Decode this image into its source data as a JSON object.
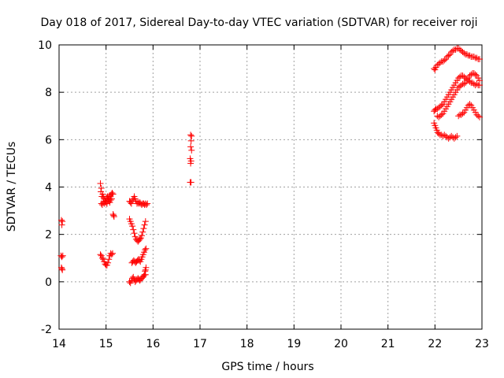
{
  "chart_data": {
    "type": "scatter",
    "title": "Day 018 of 2017, Sidereal Day-to-day VTEC variation (SDTVAR) for receiver roji",
    "xlabel": "GPS time / hours",
    "ylabel": "SDTVAR / TECUs",
    "xlim": [
      14,
      23
    ],
    "ylim": [
      -2,
      10
    ],
    "xticks": [
      "14",
      "15",
      "16",
      "17",
      "18",
      "19",
      "20",
      "21",
      "22",
      "23"
    ],
    "yticks": [
      "-2",
      "0",
      "2",
      "4",
      "6",
      "8",
      "10"
    ],
    "grid": true,
    "marker": "+",
    "color": "#ff0000",
    "series": [
      {
        "name": "SDTVAR",
        "points": [
          [
            14.05,
            2.6
          ],
          [
            14.06,
            2.4
          ],
          [
            14.07,
            2.55
          ],
          [
            14.04,
            1.1
          ],
          [
            14.06,
            1.05
          ],
          [
            14.08,
            1.1
          ],
          [
            14.05,
            0.6
          ],
          [
            14.07,
            0.5
          ],
          [
            14.06,
            0.55
          ],
          [
            14.88,
            4.15
          ],
          [
            14.9,
            3.95
          ],
          [
            14.89,
            3.8
          ],
          [
            14.91,
            3.6
          ],
          [
            14.93,
            3.7
          ],
          [
            14.95,
            3.55
          ],
          [
            14.97,
            3.5
          ],
          [
            14.99,
            3.4
          ],
          [
            15.01,
            3.55
          ],
          [
            15.03,
            3.6
          ],
          [
            15.05,
            3.5
          ],
          [
            15.07,
            3.6
          ],
          [
            15.09,
            3.65
          ],
          [
            15.11,
            3.7
          ],
          [
            15.13,
            3.75
          ],
          [
            15.15,
            3.7
          ],
          [
            14.9,
            3.3
          ],
          [
            14.92,
            3.25
          ],
          [
            14.94,
            3.35
          ],
          [
            14.96,
            3.3
          ],
          [
            14.98,
            3.4
          ],
          [
            15.0,
            3.35
          ],
          [
            15.02,
            3.3
          ],
          [
            15.04,
            3.4
          ],
          [
            15.06,
            3.45
          ],
          [
            15.08,
            3.35
          ],
          [
            15.1,
            3.45
          ],
          [
            15.12,
            3.5
          ],
          [
            15.15,
            2.85
          ],
          [
            15.17,
            2.75
          ],
          [
            15.16,
            2.8
          ],
          [
            14.88,
            1.15
          ],
          [
            14.9,
            1.1
          ],
          [
            14.92,
            1.0
          ],
          [
            14.94,
            0.95
          ],
          [
            14.96,
            0.85
          ],
          [
            14.98,
            0.75
          ],
          [
            15.0,
            0.7
          ],
          [
            15.02,
            0.7
          ],
          [
            15.04,
            0.8
          ],
          [
            15.06,
            0.95
          ],
          [
            15.08,
            1.1
          ],
          [
            15.1,
            1.2
          ],
          [
            15.12,
            1.15
          ],
          [
            15.14,
            1.2
          ],
          [
            15.5,
            3.4
          ],
          [
            15.52,
            3.35
          ],
          [
            15.54,
            3.3
          ],
          [
            15.56,
            3.45
          ],
          [
            15.58,
            3.5
          ],
          [
            15.6,
            3.6
          ],
          [
            15.62,
            3.5
          ],
          [
            15.64,
            3.4
          ],
          [
            15.66,
            3.3
          ],
          [
            15.68,
            3.35
          ],
          [
            15.7,
            3.3
          ],
          [
            15.72,
            3.35
          ],
          [
            15.74,
            3.3
          ],
          [
            15.76,
            3.25
          ],
          [
            15.78,
            3.3
          ],
          [
            15.8,
            3.3
          ],
          [
            15.82,
            3.25
          ],
          [
            15.84,
            3.3
          ],
          [
            15.86,
            3.25
          ],
          [
            15.88,
            3.3
          ],
          [
            15.5,
            2.65
          ],
          [
            15.52,
            2.55
          ],
          [
            15.54,
            2.45
          ],
          [
            15.56,
            2.35
          ],
          [
            15.58,
            2.2
          ],
          [
            15.6,
            2.05
          ],
          [
            15.62,
            1.9
          ],
          [
            15.64,
            1.8
          ],
          [
            15.66,
            1.75
          ],
          [
            15.68,
            1.7
          ],
          [
            15.7,
            1.75
          ],
          [
            15.72,
            1.8
          ],
          [
            15.74,
            1.85
          ],
          [
            15.76,
            1.95
          ],
          [
            15.78,
            2.1
          ],
          [
            15.8,
            2.25
          ],
          [
            15.82,
            2.4
          ],
          [
            15.84,
            2.55
          ],
          [
            15.55,
            0.8
          ],
          [
            15.57,
            0.85
          ],
          [
            15.59,
            0.9
          ],
          [
            15.61,
            0.85
          ],
          [
            15.63,
            0.8
          ],
          [
            15.65,
            0.85
          ],
          [
            15.67,
            0.9
          ],
          [
            15.69,
            0.95
          ],
          [
            15.71,
            0.9
          ],
          [
            15.73,
            0.85
          ],
          [
            15.75,
            0.95
          ],
          [
            15.77,
            1.05
          ],
          [
            15.79,
            1.15
          ],
          [
            15.81,
            1.25
          ],
          [
            15.83,
            1.35
          ],
          [
            15.85,
            1.4
          ],
          [
            15.5,
            0.0
          ],
          [
            15.52,
            -0.05
          ],
          [
            15.54,
            0.05
          ],
          [
            15.56,
            0.15
          ],
          [
            15.58,
            0.2
          ],
          [
            15.6,
            0.1
          ],
          [
            15.62,
            0.0
          ],
          [
            15.64,
            0.05
          ],
          [
            15.66,
            0.1
          ],
          [
            15.68,
            0.15
          ],
          [
            15.7,
            0.1
          ],
          [
            15.72,
            0.05
          ],
          [
            15.74,
            0.1
          ],
          [
            15.76,
            0.15
          ],
          [
            15.78,
            0.2
          ],
          [
            15.8,
            0.25
          ],
          [
            15.82,
            0.3
          ],
          [
            15.84,
            0.3
          ],
          [
            15.84,
            0.5
          ],
          [
            15.85,
            0.6
          ],
          [
            15.83,
            0.45
          ],
          [
            16.8,
            6.2
          ],
          [
            16.82,
            6.15
          ],
          [
            16.81,
            5.95
          ],
          [
            16.8,
            5.7
          ],
          [
            16.82,
            5.55
          ],
          [
            16.79,
            5.2
          ],
          [
            16.81,
            5.1
          ],
          [
            16.8,
            5.0
          ],
          [
            16.79,
            4.2
          ],
          [
            16.81,
            4.2
          ],
          [
            21.98,
            9.0
          ],
          [
            22.0,
            8.95
          ],
          [
            22.02,
            9.05
          ],
          [
            22.05,
            9.15
          ],
          [
            22.08,
            9.2
          ],
          [
            22.11,
            9.25
          ],
          [
            22.14,
            9.3
          ],
          [
            22.17,
            9.3
          ],
          [
            22.2,
            9.35
          ],
          [
            22.23,
            9.4
          ],
          [
            22.26,
            9.5
          ],
          [
            22.29,
            9.55
          ],
          [
            22.32,
            9.6
          ],
          [
            22.35,
            9.7
          ],
          [
            22.38,
            9.75
          ],
          [
            22.41,
            9.8
          ],
          [
            22.44,
            9.8
          ],
          [
            22.47,
            9.85
          ],
          [
            22.5,
            9.85
          ],
          [
            22.53,
            9.8
          ],
          [
            22.56,
            9.75
          ],
          [
            22.59,
            9.7
          ],
          [
            22.62,
            9.65
          ],
          [
            22.65,
            9.6
          ],
          [
            22.68,
            9.6
          ],
          [
            22.71,
            9.55
          ],
          [
            22.74,
            9.55
          ],
          [
            22.77,
            9.5
          ],
          [
            22.8,
            9.5
          ],
          [
            22.83,
            9.5
          ],
          [
            22.86,
            9.45
          ],
          [
            22.89,
            9.45
          ],
          [
            22.92,
            9.4
          ],
          [
            22.95,
            9.4
          ],
          [
            21.98,
            7.2
          ],
          [
            22.0,
            7.25
          ],
          [
            22.02,
            7.3
          ],
          [
            22.05,
            7.3
          ],
          [
            22.08,
            7.35
          ],
          [
            22.11,
            7.4
          ],
          [
            22.14,
            7.45
          ],
          [
            22.17,
            7.5
          ],
          [
            22.2,
            7.6
          ],
          [
            22.23,
            7.7
          ],
          [
            22.26,
            7.8
          ],
          [
            22.29,
            7.9
          ],
          [
            22.32,
            8.0
          ],
          [
            22.35,
            8.1
          ],
          [
            22.38,
            8.2
          ],
          [
            22.41,
            8.3
          ],
          [
            22.44,
            8.4
          ],
          [
            22.47,
            8.5
          ],
          [
            22.5,
            8.6
          ],
          [
            22.53,
            8.65
          ],
          [
            22.56,
            8.7
          ],
          [
            22.59,
            8.7
          ],
          [
            22.62,
            8.65
          ],
          [
            22.65,
            8.6
          ],
          [
            22.68,
            8.55
          ],
          [
            22.71,
            8.5
          ],
          [
            22.74,
            8.45
          ],
          [
            22.77,
            8.4
          ],
          [
            22.8,
            8.4
          ],
          [
            22.83,
            8.35
          ],
          [
            22.86,
            8.3
          ],
          [
            22.89,
            8.35
          ],
          [
            22.92,
            8.3
          ],
          [
            22.95,
            8.3
          ],
          [
            22.05,
            7.0
          ],
          [
            22.08,
            6.95
          ],
          [
            22.11,
            7.0
          ],
          [
            22.14,
            7.05
          ],
          [
            22.17,
            7.1
          ],
          [
            22.2,
            7.2
          ],
          [
            22.23,
            7.3
          ],
          [
            22.26,
            7.4
          ],
          [
            22.29,
            7.5
          ],
          [
            22.32,
            7.6
          ],
          [
            22.35,
            7.7
          ],
          [
            22.38,
            7.8
          ],
          [
            22.41,
            7.9
          ],
          [
            22.44,
            8.0
          ],
          [
            22.47,
            8.1
          ],
          [
            22.5,
            8.2
          ],
          [
            22.53,
            8.25
          ],
          [
            22.56,
            8.3
          ],
          [
            22.59,
            8.35
          ],
          [
            22.62,
            8.35
          ],
          [
            22.65,
            8.4
          ],
          [
            22.68,
            8.5
          ],
          [
            22.71,
            8.6
          ],
          [
            22.74,
            8.7
          ],
          [
            22.77,
            8.75
          ],
          [
            22.8,
            8.8
          ],
          [
            22.83,
            8.8
          ],
          [
            22.86,
            8.75
          ],
          [
            22.89,
            8.7
          ],
          [
            22.92,
            8.6
          ],
          [
            22.95,
            8.5
          ],
          [
            21.98,
            6.7
          ],
          [
            22.0,
            6.6
          ],
          [
            22.02,
            6.5
          ],
          [
            22.04,
            6.4
          ],
          [
            22.06,
            6.3
          ],
          [
            22.08,
            6.25
          ],
          [
            22.11,
            6.2
          ],
          [
            22.14,
            6.2
          ],
          [
            22.17,
            6.15
          ],
          [
            22.2,
            6.2
          ],
          [
            22.23,
            6.15
          ],
          [
            22.26,
            6.1
          ],
          [
            22.29,
            6.05
          ],
          [
            22.32,
            6.1
          ],
          [
            22.35,
            6.15
          ],
          [
            22.38,
            6.1
          ],
          [
            22.41,
            6.05
          ],
          [
            22.44,
            6.1
          ],
          [
            22.47,
            6.15
          ],
          [
            22.5,
            7.0
          ],
          [
            22.53,
            7.05
          ],
          [
            22.56,
            7.05
          ],
          [
            22.59,
            7.1
          ],
          [
            22.62,
            7.15
          ],
          [
            22.65,
            7.25
          ],
          [
            22.68,
            7.35
          ],
          [
            22.71,
            7.45
          ],
          [
            22.74,
            7.5
          ],
          [
            22.77,
            7.45
          ],
          [
            22.8,
            7.35
          ],
          [
            22.83,
            7.25
          ],
          [
            22.86,
            7.15
          ],
          [
            22.89,
            7.05
          ],
          [
            22.92,
            7.0
          ],
          [
            22.95,
            6.95
          ]
        ]
      }
    ]
  }
}
